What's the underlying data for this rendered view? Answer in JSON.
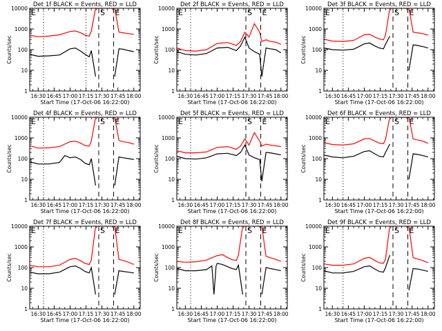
{
  "figure": {
    "x_ticks": [
      "16:30",
      "16:45",
      "17:00",
      "17:15",
      "17:30",
      "17:45",
      "18:00"
    ],
    "y_ticks": [
      "1",
      "10",
      "100",
      "1000",
      "10000"
    ],
    "xlabel": "Start Time (17-Oct-06 16:22:00)",
    "ylabel": "Counts/sec",
    "colors": {
      "events": "#000000",
      "lld": "#ff0000",
      "axes": "#000000"
    },
    "marker_labels": {
      "start": "S",
      "end": "E"
    }
  },
  "chart_data": [
    {
      "type": "line",
      "title": "Det 1f BLACK = Events, RED = LLD",
      "x_range": [
        "16:22",
        "18:06"
      ],
      "y_scale": "log",
      "ylim": [
        1,
        10000
      ],
      "markers": {
        "dotted": [
          "16:35",
          "17:15"
        ],
        "dashed": [
          "17:27",
          "17:41"
        ]
      },
      "series": [
        {
          "name": "Events",
          "color": "#000000",
          "x": [
            "16:22",
            "16:30",
            "16:40",
            "16:50",
            "17:00",
            "17:05",
            "17:10",
            "17:14",
            "17:18",
            "17:20",
            "17:24",
            "17:27",
            "17:33",
            "17:40",
            "17:42",
            "17:46",
            "17:50",
            "17:55",
            "18:00"
          ],
          "y": [
            60,
            48,
            50,
            55,
            110,
            120,
            85,
            60,
            45,
            90,
            5,
            null,
            null,
            null,
            5,
            110,
            105,
            90,
            80
          ]
        },
        {
          "name": "LLD",
          "color": "#ff0000",
          "x": [
            "16:22",
            "16:30",
            "16:40",
            "16:50",
            "17:00",
            "17:05",
            "17:10",
            "17:14",
            "17:18",
            "17:20",
            "17:24",
            "17:27",
            "17:33",
            "17:40",
            "17:42",
            "17:46",
            "17:50",
            "17:55",
            "18:00"
          ],
          "y": [
            500,
            420,
            450,
            520,
            750,
            800,
            650,
            500,
            450,
            800,
            10000,
            10000,
            10000,
            10000,
            10000,
            700,
            650,
            600,
            550
          ]
        }
      ]
    },
    {
      "type": "line",
      "title": "Det 2f BLACK = Events, RED = LLD",
      "x_range": [
        "16:22",
        "18:06"
      ],
      "y_scale": "log",
      "ylim": [
        1,
        10000
      ],
      "markers": {
        "dotted": [
          "16:35"
        ],
        "dashed": [
          "17:27",
          "17:41"
        ]
      },
      "series": [
        {
          "name": "Events",
          "color": "#000000",
          "x": [
            "16:22",
            "16:30",
            "16:40",
            "16:50",
            "17:00",
            "17:10",
            "17:18",
            "17:22",
            "17:26",
            "17:30",
            "17:35",
            "17:40",
            "17:42",
            "17:46",
            "17:50",
            "17:55",
            "18:00"
          ],
          "y": [
            80,
            60,
            55,
            65,
            120,
            130,
            90,
            150,
            400,
            120,
            80,
            60,
            5,
            120,
            110,
            100,
            70
          ]
        },
        {
          "name": "LLD",
          "color": "#ff0000",
          "x": [
            "16:22",
            "16:30",
            "16:40",
            "16:50",
            "17:00",
            "17:10",
            "17:18",
            "17:22",
            "17:26",
            "17:30",
            "17:35",
            "17:40",
            "17:42",
            "17:46",
            "17:50",
            "17:55",
            "18:00"
          ],
          "y": [
            120,
            90,
            85,
            100,
            200,
            220,
            160,
            250,
            700,
            400,
            1800,
            700,
            250,
            300,
            250,
            230,
            180
          ]
        }
      ]
    },
    {
      "type": "line",
      "title": "Det 3f BLACK = Events, RED = LLD",
      "x_range": [
        "16:22",
        "18:06"
      ],
      "y_scale": "log",
      "ylim": [
        1,
        10000
      ],
      "markers": {
        "dotted": [
          "16:40"
        ],
        "dashed": [
          "17:27",
          "17:41"
        ]
      },
      "series": [
        {
          "name": "Events",
          "color": "#000000",
          "x": [
            "16:22",
            "16:30",
            "16:40",
            "16:50",
            "17:00",
            "17:05",
            "17:10",
            "17:14",
            "17:18",
            "17:20",
            "17:24",
            "17:27",
            "17:33",
            "17:40",
            "17:42",
            "17:46",
            "17:50",
            "17:55",
            "18:00"
          ],
          "y": [
            120,
            100,
            95,
            105,
            190,
            210,
            150,
            120,
            110,
            180,
            450,
            null,
            null,
            null,
            10,
            170,
            160,
            140,
            120
          ]
        },
        {
          "name": "LLD",
          "color": "#ff0000",
          "x": [
            "16:22",
            "16:30",
            "16:40",
            "16:50",
            "17:00",
            "17:05",
            "17:10",
            "17:14",
            "17:18",
            "17:20",
            "17:24",
            "17:27",
            "17:33",
            "17:40",
            "17:42",
            "17:46",
            "17:50",
            "17:55",
            "18:00"
          ],
          "y": [
            320,
            260,
            250,
            280,
            520,
            560,
            400,
            330,
            300,
            500,
            10000,
            10000,
            10000,
            10000,
            10000,
            700,
            650,
            600,
            500
          ]
        }
      ]
    },
    {
      "type": "line",
      "title": "Det 4f BLACK = Events, RED = LLD",
      "x_range": [
        "16:22",
        "18:06"
      ],
      "y_scale": "log",
      "ylim": [
        1,
        10000
      ],
      "markers": {
        "dotted": [
          "16:35"
        ],
        "dashed": [
          "17:27",
          "17:41"
        ]
      },
      "series": [
        {
          "name": "Events",
          "color": "#000000",
          "x": [
            "16:22",
            "16:30",
            "16:40",
            "16:50",
            "16:55",
            "17:00",
            "17:05",
            "17:10",
            "17:14",
            "17:18",
            "17:20",
            "17:24",
            "17:27",
            "17:33",
            "17:40",
            "17:42",
            "17:46",
            "17:50",
            "17:55",
            "18:00"
          ],
          "y": [
            70,
            55,
            55,
            65,
            140,
            110,
            120,
            90,
            60,
            50,
            100,
            5,
            null,
            null,
            null,
            5,
            120,
            110,
            100,
            90
          ]
        },
        {
          "name": "LLD",
          "color": "#ff0000",
          "x": [
            "16:22",
            "16:30",
            "16:40",
            "16:50",
            "16:55",
            "17:00",
            "17:05",
            "17:10",
            "17:14",
            "17:18",
            "17:20",
            "17:24",
            "17:27",
            "17:33",
            "17:40",
            "17:42",
            "17:46",
            "17:50",
            "17:55",
            "18:00"
          ],
          "y": [
            420,
            320,
            330,
            380,
            500,
            650,
            700,
            560,
            430,
            400,
            700,
            10000,
            10000,
            10000,
            10000,
            10000,
            750,
            650,
            600,
            500
          ]
        }
      ]
    },
    {
      "type": "line",
      "title": "Det 5f BLACK = Events, RED = LLD",
      "x_range": [
        "16:22",
        "18:06"
      ],
      "y_scale": "log",
      "ylim": [
        1,
        10000
      ],
      "markers": {
        "dotted": [
          "16:35"
        ],
        "dashed": [
          "17:27",
          "17:41"
        ]
      },
      "series": [
        {
          "name": "Events",
          "color": "#000000",
          "x": [
            "16:22",
            "16:30",
            "16:40",
            "16:50",
            "17:00",
            "17:10",
            "17:18",
            "17:22",
            "17:26",
            "17:30",
            "17:35",
            "17:40",
            "17:42",
            "17:46",
            "17:50",
            "17:55",
            "18:00"
          ],
          "y": [
            130,
            100,
            95,
            110,
            170,
            180,
            140,
            200,
            450,
            150,
            110,
            90,
            8,
            200,
            190,
            170,
            150
          ]
        },
        {
          "name": "LLD",
          "color": "#ff0000",
          "x": [
            "16:22",
            "16:30",
            "16:40",
            "16:50",
            "17:00",
            "17:10",
            "17:18",
            "17:22",
            "17:26",
            "17:30",
            "17:35",
            "17:40",
            "17:42",
            "17:46",
            "17:50",
            "17:55",
            "18:00"
          ],
          "y": [
            240,
            190,
            190,
            210,
            350,
            380,
            280,
            400,
            900,
            450,
            1800,
            700,
            400,
            500,
            450,
            420,
            380
          ]
        }
      ]
    },
    {
      "type": "line",
      "title": "Det 6f BLACK = Events, RED = LLD",
      "x_range": [
        "16:22",
        "18:06"
      ],
      "y_scale": "log",
      "ylim": [
        1,
        10000
      ],
      "markers": {
        "dotted": [
          "16:40"
        ],
        "dashed": [
          "17:27",
          "17:41"
        ]
      },
      "series": [
        {
          "name": "Events",
          "color": "#000000",
          "x": [
            "16:22",
            "16:30",
            "16:40",
            "16:50",
            "17:00",
            "17:05",
            "17:10",
            "17:14",
            "17:18",
            "17:20",
            "17:24",
            "17:27",
            "17:33",
            "17:40",
            "17:42",
            "17:46",
            "17:50",
            "17:55",
            "18:00"
          ],
          "y": [
            150,
            120,
            110,
            130,
            220,
            240,
            170,
            130,
            120,
            200,
            500,
            null,
            null,
            null,
            10,
            170,
            160,
            140,
            120
          ]
        },
        {
          "name": "LLD",
          "color": "#ff0000",
          "x": [
            "16:22",
            "16:30",
            "16:40",
            "16:50",
            "17:00",
            "17:05",
            "17:10",
            "17:14",
            "17:18",
            "17:20",
            "17:24",
            "17:27",
            "17:33",
            "17:40",
            "17:42",
            "17:46",
            "17:50",
            "17:55",
            "18:00"
          ],
          "y": [
            600,
            480,
            450,
            520,
            900,
            950,
            700,
            560,
            520,
            850,
            10000,
            10000,
            10000,
            10000,
            10000,
            900,
            800,
            700,
            550
          ]
        }
      ]
    },
    {
      "type": "line",
      "title": "Det 7f BLACK = Events, RED = LLD",
      "x_range": [
        "16:22",
        "18:06"
      ],
      "y_scale": "log",
      "ylim": [
        1,
        10000
      ],
      "markers": {
        "dotted": [
          "16:35"
        ],
        "dashed": [
          "17:27",
          "17:41"
        ]
      },
      "series": [
        {
          "name": "Events",
          "color": "#000000",
          "x": [
            "16:22",
            "16:30",
            "16:40",
            "16:50",
            "17:00",
            "17:05",
            "17:10",
            "17:14",
            "17:18",
            "17:20",
            "17:24",
            "17:27",
            "17:33",
            "17:40",
            "17:42",
            "17:46",
            "17:50",
            "17:55",
            "18:00"
          ],
          "y": [
            60,
            50,
            50,
            60,
            110,
            120,
            90,
            65,
            55,
            100,
            5,
            null,
            null,
            null,
            5,
            70,
            65,
            60,
            55
          ]
        },
        {
          "name": "LLD",
          "color": "#ff0000",
          "x": [
            "16:22",
            "16:30",
            "16:40",
            "16:50",
            "17:00",
            "17:05",
            "17:10",
            "17:14",
            "17:18",
            "17:20",
            "17:24",
            "17:27",
            "17:33",
            "17:40",
            "17:42",
            "17:46",
            "17:50",
            "17:55",
            "18:00"
          ],
          "y": [
            130,
            110,
            110,
            130,
            250,
            280,
            210,
            160,
            140,
            230,
            10000,
            10000,
            10000,
            10000,
            10000,
            250,
            220,
            180,
            140
          ]
        }
      ]
    },
    {
      "type": "line",
      "title": "Det 8f BLACK = Events, RED = LLD",
      "x_range": [
        "16:22",
        "18:06"
      ],
      "y_scale": "log",
      "ylim": [
        1,
        10000
      ],
      "markers": {
        "dotted": [
          "16:35"
        ],
        "dashed": [
          "17:27",
          "17:41"
        ]
      },
      "series": [
        {
          "name": "Events",
          "color": "#000000",
          "x": [
            "16:22",
            "16:30",
            "16:40",
            "16:50",
            "16:55",
            "16:57",
            "16:59",
            "17:00",
            "17:05",
            "17:10",
            "17:14",
            "17:18",
            "17:20",
            "17:24",
            "17:27",
            "17:33",
            "17:40",
            "17:42",
            "17:46",
            "17:50",
            "17:55",
            "18:00"
          ],
          "y": [
            90,
            70,
            70,
            80,
            120,
            5,
            120,
            160,
            140,
            110,
            90,
            80,
            130,
            5,
            null,
            null,
            null,
            5,
            100,
            90,
            80,
            70
          ]
        },
        {
          "name": "LLD",
          "color": "#ff0000",
          "x": [
            "16:22",
            "16:30",
            "16:40",
            "16:50",
            "17:00",
            "17:05",
            "17:10",
            "17:14",
            "17:18",
            "17:20",
            "17:24",
            "17:27",
            "17:33",
            "17:40",
            "17:42",
            "17:46",
            "17:50",
            "17:55",
            "18:00"
          ],
          "y": [
            200,
            180,
            190,
            230,
            380,
            420,
            300,
            240,
            220,
            400,
            10000,
            10000,
            10000,
            10000,
            10000,
            350,
            300,
            250,
            200
          ]
        }
      ]
    },
    {
      "type": "line",
      "title": "Det 9f BLACK = Events, RED = LLD",
      "x_range": [
        "16:22",
        "18:06"
      ],
      "y_scale": "log",
      "ylim": [
        1,
        10000
      ],
      "markers": {
        "dotted": [
          "16:40"
        ],
        "dashed": [
          "17:27",
          "17:41"
        ]
      },
      "series": [
        {
          "name": "Events",
          "color": "#000000",
          "x": [
            "16:22",
            "16:30",
            "16:40",
            "16:50",
            "17:00",
            "17:05",
            "17:10",
            "17:14",
            "17:18",
            "17:20",
            "17:24",
            "17:27",
            "17:33",
            "17:40",
            "17:42",
            "17:46",
            "17:50",
            "17:55",
            "18:00"
          ],
          "y": [
            70,
            55,
            55,
            65,
            110,
            120,
            85,
            65,
            60,
            100,
            400,
            null,
            null,
            null,
            8,
            90,
            85,
            75,
            65
          ]
        },
        {
          "name": "LLD",
          "color": "#ff0000",
          "x": [
            "16:22",
            "16:30",
            "16:40",
            "16:50",
            "17:00",
            "17:05",
            "17:10",
            "17:14",
            "17:18",
            "17:20",
            "17:24",
            "17:27",
            "17:33",
            "17:40",
            "17:42",
            "17:46",
            "17:50",
            "17:55",
            "18:00"
          ],
          "y": [
            150,
            130,
            130,
            150,
            280,
            310,
            220,
            170,
            160,
            260,
            10000,
            10000,
            10000,
            10000,
            10000,
            300,
            260,
            220,
            170
          ]
        }
      ]
    }
  ]
}
